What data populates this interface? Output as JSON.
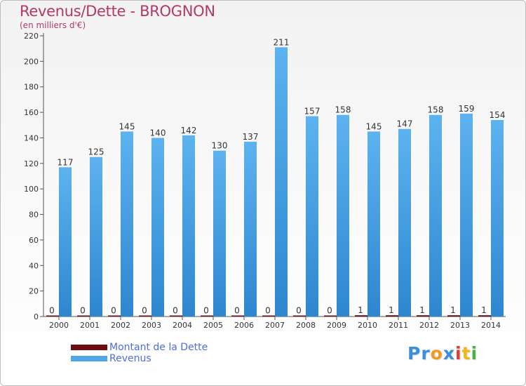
{
  "title": "Revenus/Dette - BROGNON",
  "subtitle": "(en milliers d'€)",
  "brand": {
    "text": "Proxiti",
    "letters": [
      "Pr",
      "o",
      "x",
      "i",
      "t",
      "i"
    ]
  },
  "colors": {
    "title": "#b4376a",
    "debt": "#6b0f12",
    "revenue": "#4ea8e6",
    "axis_text": "#333333",
    "legend_text": "#4e6ee0"
  },
  "chart_data": {
    "type": "bar",
    "title": "Revenus/Dette - BROGNON",
    "subtitle": "(en milliers d'€)",
    "xlabel": "",
    "ylabel": "",
    "categories": [
      "2000",
      "2001",
      "2002",
      "2003",
      "2004",
      "2005",
      "2006",
      "2007",
      "2008",
      "2009",
      "2010",
      "2011",
      "2012",
      "2013",
      "2014"
    ],
    "series": [
      {
        "name": "Montant de la Dette",
        "values": [
          0,
          0,
          0,
          0,
          0,
          0,
          0,
          0,
          0,
          0,
          1,
          1,
          1,
          1,
          1
        ]
      },
      {
        "name": "Revenus",
        "values": [
          117,
          125,
          145,
          140,
          142,
          130,
          137,
          211,
          157,
          158,
          145,
          147,
          158,
          159,
          154
        ]
      }
    ],
    "ylim": [
      0,
      220
    ],
    "yticks": [
      0,
      20,
      40,
      60,
      80,
      100,
      120,
      140,
      160,
      180,
      200,
      220
    ],
    "grid": false,
    "legend": "bottom-left"
  }
}
